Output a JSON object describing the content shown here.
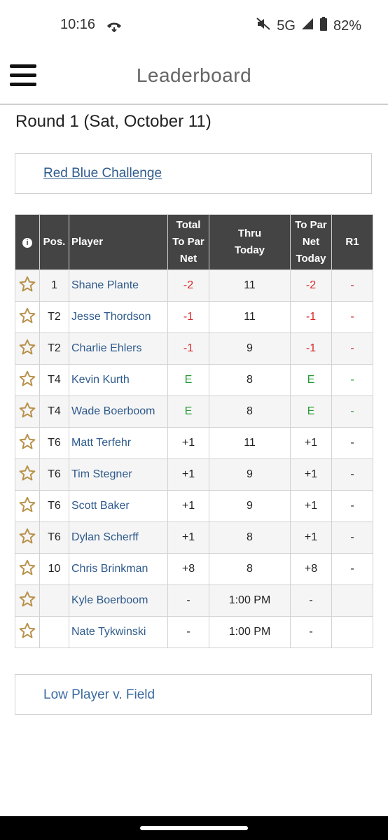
{
  "status": {
    "time": "10:16",
    "network": "5G",
    "battery": "82%"
  },
  "header": {
    "title": "Leaderboard"
  },
  "round_title": "Round 1 (Sat, October 11)",
  "flight_link": "Red Blue Challenge",
  "columns": {
    "info": "i",
    "pos": "Pos.",
    "player": "Player",
    "total_l1": "Total",
    "total_l2": "To Par",
    "total_l3": "Net",
    "thru_l1": "Thru",
    "thru_l2": "Today",
    "topar_l1": "To Par",
    "topar_l2": "Net",
    "topar_l3": "Today",
    "r1": "R1"
  },
  "rows": [
    {
      "pos": "1",
      "player": "Shane Plante",
      "total": "-2",
      "thru": "11",
      "today": "-2",
      "r1": "-",
      "color": "red"
    },
    {
      "pos": "T2",
      "player": "Jesse Thordson",
      "total": "-1",
      "thru": "11",
      "today": "-1",
      "r1": "-",
      "color": "red"
    },
    {
      "pos": "T2",
      "player": "Charlie Ehlers",
      "total": "-1",
      "thru": "9",
      "today": "-1",
      "r1": "-",
      "color": "red"
    },
    {
      "pos": "T4",
      "player": "Kevin Kurth",
      "total": "E",
      "thru": "8",
      "today": "E",
      "r1": "-",
      "color": "green"
    },
    {
      "pos": "T4",
      "player": "Wade Boerboom",
      "total": "E",
      "thru": "8",
      "today": "E",
      "r1": "-",
      "color": "green"
    },
    {
      "pos": "T6",
      "player": "Matt Terfehr",
      "total": "+1",
      "thru": "11",
      "today": "+1",
      "r1": "-",
      "color": "black"
    },
    {
      "pos": "T6",
      "player": "Tim Stegner",
      "total": "+1",
      "thru": "9",
      "today": "+1",
      "r1": "-",
      "color": "black"
    },
    {
      "pos": "T6",
      "player": "Scott Baker",
      "total": "+1",
      "thru": "9",
      "today": "+1",
      "r1": "-",
      "color": "black"
    },
    {
      "pos": "T6",
      "player": "Dylan Scherff",
      "total": "+1",
      "thru": "8",
      "today": "+1",
      "r1": "-",
      "color": "black"
    },
    {
      "pos": "10",
      "player": "Chris Brinkman",
      "total": "+8",
      "thru": "8",
      "today": "+8",
      "r1": "-",
      "color": "black"
    },
    {
      "pos": "",
      "player": "Kyle Boerboom",
      "total": "-",
      "thru": "1:00 PM",
      "today": "-",
      "r1": "",
      "color": "black"
    },
    {
      "pos": "",
      "player": "Nate Tykwinski",
      "total": "-",
      "thru": "1:00 PM",
      "today": "-",
      "r1": "",
      "color": "black"
    }
  ],
  "bottom_link": "Low Player v. Field",
  "colors": {
    "header_bg": "#444444",
    "link": "#2e5a8c",
    "star": "#b8904a",
    "negative": "#d62a2a",
    "even": "#2a9a3a"
  }
}
